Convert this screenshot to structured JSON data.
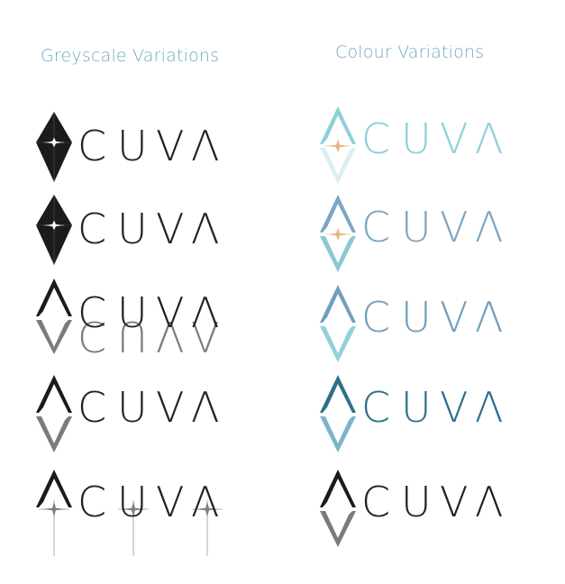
{
  "headings": {
    "greyscale": "Greyscale Variations",
    "colour": "Colour Variations"
  },
  "heading_color": "#6fa7c4",
  "logo_wordmark": "ACUVA",
  "logo_letters": [
    "C",
    "U",
    "V",
    "Λ"
  ],
  "greyscale_variations": [
    {
      "mark": "diamond",
      "mark_color": "#1b1b1b",
      "letter_color": "#222222",
      "lower_color": "#1b1b1b"
    },
    {
      "mark": "diamond",
      "mark_color": "#1b1b1b",
      "letter_color": "#222222",
      "lower_color": "#1b1b1b"
    },
    {
      "mark": "mirror-word",
      "mark_color": "#1b1b1b",
      "letter_color": "#222222",
      "lower_color": "#7b7b7b"
    },
    {
      "mark": "split",
      "mark_color": "#1b1b1b",
      "letter_color": "#222222",
      "lower_color": "#7b7b7b"
    },
    {
      "mark": "light-lines",
      "mark_color": "#1b1b1b",
      "letter_color": "#222222",
      "lower_color": "#7b7b7b"
    }
  ],
  "colour_variations": [
    {
      "mark": "split",
      "mark_color": "#8ed0d8",
      "letter_color": "#8ed0d8",
      "lower_color": "#dbeff3",
      "star_color": "#e3b27a"
    },
    {
      "mark": "split",
      "mark_color": "#7ba6c3",
      "letter_color": "#7ba6c3",
      "lower_color": "#8cc9d3",
      "star_color": "#e3b27a"
    },
    {
      "mark": "split",
      "mark_color": "#6f9fbf",
      "letter_color": "#6f9fbf",
      "lower_color": "#92d1da",
      "star_color": "#ffffff"
    },
    {
      "mark": "split",
      "mark_color": "#2d6f8c",
      "letter_color": "#2d6f8c",
      "lower_color": "#7fb3c9",
      "star_color": "#ffffff"
    },
    {
      "mark": "split",
      "mark_color": "#1b1b1b",
      "letter_color": "#222222",
      "lower_color": "#7b7b7b",
      "star_color": "#ffffff"
    }
  ]
}
